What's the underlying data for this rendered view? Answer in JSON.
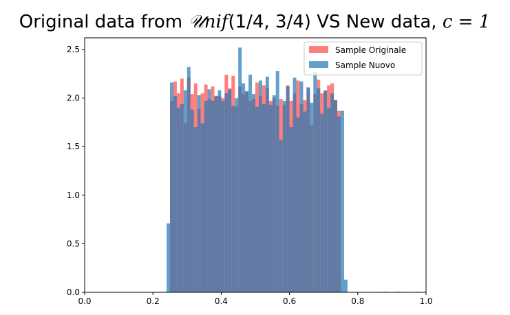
{
  "chart_data": {
    "type": "bar",
    "title_parts": {
      "prefix": "Original data from ",
      "dist": "𝒰nif",
      "args": "(1/4, 3/4)",
      "suffix": " VS New data, ",
      "param": "c = 1"
    },
    "xlabel": "",
    "ylabel": "",
    "xlim": [
      0.0,
      1.0
    ],
    "ylim": [
      0.0,
      2.62
    ],
    "xticks": [
      0.0,
      0.2,
      0.4,
      0.6,
      0.8,
      1.0
    ],
    "xtick_labels": [
      "0.0",
      "0.2",
      "0.4",
      "0.6",
      "0.8",
      "1.0"
    ],
    "yticks": [
      0.0,
      0.5,
      1.0,
      1.5,
      2.0,
      2.5
    ],
    "ytick_labels": [
      "0.0",
      "0.5",
      "1.0",
      "1.5",
      "2.0",
      "2.5"
    ],
    "grid": false,
    "legend_position": "top-right",
    "series": [
      {
        "name": "Sample Originale",
        "color": "#ff7f7f",
        "bin_start": 0.25,
        "bin_width": 0.01,
        "values": [
          1.97,
          2.17,
          2.05,
          2.2,
          1.74,
          2.21,
          2.04,
          2.15,
          1.89,
          2.05,
          2.14,
          1.99,
          2.12,
          2.02,
          2.02,
          2.0,
          2.24,
          2.1,
          2.23,
          1.91,
          2.12,
          2.04,
          2.07,
          1.97,
          1.99,
          2.16,
          2.02,
          2.13,
          2.1,
          1.97,
          2.0,
          1.92,
          1.99,
          1.93,
          2.13,
          1.97,
          2.05,
          2.18,
          1.94,
          1.98,
          2.1,
          1.72,
          2.04,
          2.19,
          2.05,
          2.07,
          2.13,
          2.15,
          1.98,
          1.87
        ]
      },
      {
        "name": "Sample Nuovo",
        "color": "#1f77b4",
        "color_alpha": 0.7,
        "bin_start": 0.0,
        "bin_width": 0.01,
        "values": [
          0,
          0,
          0,
          0,
          0,
          0,
          0,
          0,
          0,
          0,
          0,
          0,
          0,
          0,
          0,
          0,
          0,
          0,
          0,
          0,
          0,
          0,
          0.005,
          0.005,
          0.71,
          2.16,
          2.02,
          1.9,
          1.94,
          2.08,
          2.32,
          1.88,
          1.7,
          2.03,
          1.74,
          1.97,
          2.09,
          1.97,
          2.02,
          2.08,
          1.97,
          2.05,
          2.09,
          1.92,
          2.0,
          2.52,
          2.15,
          2.07,
          2.24,
          2.04,
          1.91,
          2.18,
          1.94,
          2.22,
          1.93,
          2.03,
          2.28,
          1.57,
          1.97,
          2.12,
          1.7,
          2.21,
          1.8,
          2.17,
          1.86,
          2.11,
          1.95,
          2.27,
          2.1,
          1.84,
          2.08,
          1.9,
          2.05,
          1.98,
          1.81,
          1.87,
          0.13,
          0,
          0,
          0,
          0,
          0,
          0,
          0,
          0,
          0,
          0,
          0.005,
          0.005,
          0,
          0,
          0.005,
          0.005,
          0,
          0,
          0,
          0,
          0.005,
          0,
          0
        ]
      }
    ]
  }
}
